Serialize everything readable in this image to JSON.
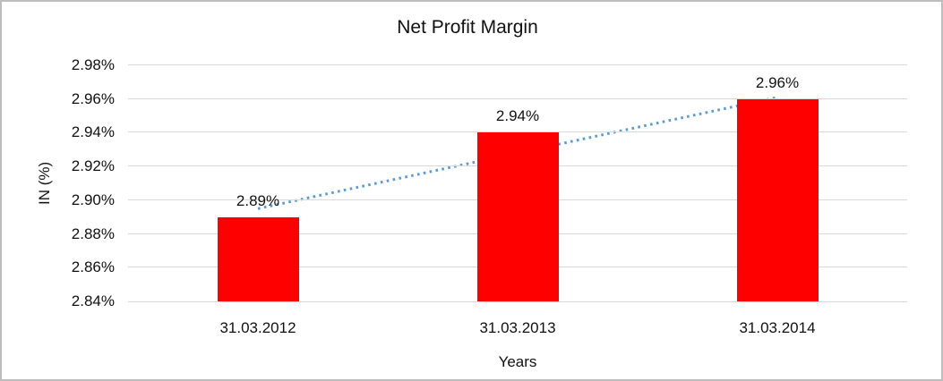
{
  "chart": {
    "title": "Net Profit Margin",
    "ylabel": "IN (%)",
    "xlabel": "Years"
  },
  "chart_data": {
    "type": "bar",
    "title": "Net Profit Margin",
    "xlabel": "Years",
    "ylabel": "IN (%)",
    "categories": [
      "31.03.2012",
      "31.03.2013",
      "31.03.2014"
    ],
    "values": [
      2.89,
      2.94,
      2.96
    ],
    "data_labels": [
      "2.89%",
      "2.94%",
      "2.96%"
    ],
    "y_ticks": [
      "2.98%",
      "2.96%",
      "2.94%",
      "2.92%",
      "2.90%",
      "2.88%",
      "2.86%",
      "2.84%"
    ],
    "y_tick_values": [
      2.98,
      2.96,
      2.94,
      2.92,
      2.9,
      2.88,
      2.86,
      2.84
    ],
    "ylim": [
      2.84,
      2.98
    ],
    "grid": true,
    "legend": "none",
    "bar_color": "#FF0000",
    "grid_color": "#D9D9D9",
    "text_color": "#111111",
    "trendline": {
      "type": "linear",
      "style": "dotted",
      "color": "#5B9BD5",
      "start_value": 2.895,
      "end_value": 2.961
    }
  }
}
